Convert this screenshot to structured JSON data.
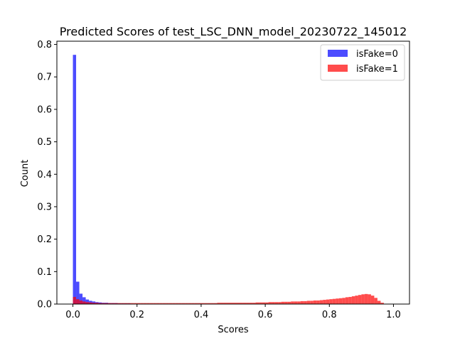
{
  "chart_data": {
    "type": "bar",
    "title": "Predicted Scores of test_LSC_DNN_model_20230722_145012",
    "xlabel": "Scores",
    "ylabel": "Count",
    "xlim": [
      -0.05,
      1.05
    ],
    "ylim": [
      0,
      0.81
    ],
    "xticks": [
      "0.0",
      "0.2",
      "0.4",
      "0.6",
      "0.8",
      "1.0"
    ],
    "yticks": [
      "0.0",
      "0.1",
      "0.2",
      "0.3",
      "0.4",
      "0.5",
      "0.6",
      "0.7",
      "0.8"
    ],
    "grid": false,
    "legend_placement": "top-right",
    "bin_width": 0.01,
    "series": [
      {
        "name": "isFake=0",
        "color": "#0000ff",
        "alpha": 0.7,
        "bins": [
          [
            0.0,
            0.768
          ],
          [
            0.01,
            0.069
          ],
          [
            0.02,
            0.032
          ],
          [
            0.03,
            0.021
          ],
          [
            0.04,
            0.014
          ],
          [
            0.05,
            0.01
          ],
          [
            0.06,
            0.008
          ],
          [
            0.07,
            0.006
          ],
          [
            0.08,
            0.005
          ],
          [
            0.09,
            0.004
          ],
          [
            0.1,
            0.004
          ],
          [
            0.11,
            0.003
          ],
          [
            0.12,
            0.003
          ],
          [
            0.13,
            0.003
          ],
          [
            0.14,
            0.002
          ],
          [
            0.15,
            0.002
          ],
          [
            0.16,
            0.002
          ],
          [
            0.17,
            0.002
          ],
          [
            0.18,
            0.001
          ],
          [
            0.19,
            0.001
          ]
        ]
      },
      {
        "name": "isFake=1",
        "color": "#ff0000",
        "alpha": 0.7,
        "bins": [
          [
            0.0,
            0.022
          ],
          [
            0.01,
            0.015
          ],
          [
            0.02,
            0.011
          ],
          [
            0.03,
            0.008
          ],
          [
            0.04,
            0.006
          ],
          [
            0.05,
            0.005
          ],
          [
            0.06,
            0.004
          ],
          [
            0.07,
            0.004
          ],
          [
            0.08,
            0.003
          ],
          [
            0.09,
            0.003
          ],
          [
            0.1,
            0.003
          ],
          [
            0.11,
            0.003
          ],
          [
            0.12,
            0.003
          ],
          [
            0.13,
            0.003
          ],
          [
            0.14,
            0.003
          ],
          [
            0.15,
            0.003
          ],
          [
            0.16,
            0.003
          ],
          [
            0.17,
            0.003
          ],
          [
            0.18,
            0.003
          ],
          [
            0.19,
            0.003
          ],
          [
            0.2,
            0.003
          ],
          [
            0.21,
            0.003
          ],
          [
            0.22,
            0.003
          ],
          [
            0.23,
            0.003
          ],
          [
            0.24,
            0.003
          ],
          [
            0.25,
            0.003
          ],
          [
            0.26,
            0.003
          ],
          [
            0.27,
            0.003
          ],
          [
            0.28,
            0.003
          ],
          [
            0.29,
            0.003
          ],
          [
            0.3,
            0.003
          ],
          [
            0.31,
            0.003
          ],
          [
            0.32,
            0.003
          ],
          [
            0.33,
            0.003
          ],
          [
            0.34,
            0.003
          ],
          [
            0.35,
            0.003
          ],
          [
            0.36,
            0.003
          ],
          [
            0.37,
            0.003
          ],
          [
            0.38,
            0.003
          ],
          [
            0.39,
            0.003
          ],
          [
            0.4,
            0.003
          ],
          [
            0.41,
            0.003
          ],
          [
            0.42,
            0.003
          ],
          [
            0.43,
            0.003
          ],
          [
            0.44,
            0.003
          ],
          [
            0.45,
            0.004
          ],
          [
            0.46,
            0.004
          ],
          [
            0.47,
            0.004
          ],
          [
            0.48,
            0.004
          ],
          [
            0.49,
            0.004
          ],
          [
            0.5,
            0.004
          ],
          [
            0.51,
            0.004
          ],
          [
            0.52,
            0.004
          ],
          [
            0.53,
            0.004
          ],
          [
            0.54,
            0.004
          ],
          [
            0.55,
            0.004
          ],
          [
            0.56,
            0.004
          ],
          [
            0.57,
            0.005
          ],
          [
            0.58,
            0.005
          ],
          [
            0.59,
            0.005
          ],
          [
            0.6,
            0.005
          ],
          [
            0.61,
            0.006
          ],
          [
            0.62,
            0.006
          ],
          [
            0.63,
            0.006
          ],
          [
            0.64,
            0.006
          ],
          [
            0.65,
            0.007
          ],
          [
            0.66,
            0.007
          ],
          [
            0.67,
            0.007
          ],
          [
            0.68,
            0.008
          ],
          [
            0.69,
            0.008
          ],
          [
            0.7,
            0.008
          ],
          [
            0.71,
            0.009
          ],
          [
            0.72,
            0.009
          ],
          [
            0.73,
            0.01
          ],
          [
            0.74,
            0.01
          ],
          [
            0.75,
            0.011
          ],
          [
            0.76,
            0.011
          ],
          [
            0.77,
            0.012
          ],
          [
            0.78,
            0.013
          ],
          [
            0.79,
            0.014
          ],
          [
            0.8,
            0.015
          ],
          [
            0.81,
            0.016
          ],
          [
            0.82,
            0.017
          ],
          [
            0.83,
            0.018
          ],
          [
            0.84,
            0.019
          ],
          [
            0.85,
            0.021
          ],
          [
            0.86,
            0.022
          ],
          [
            0.87,
            0.024
          ],
          [
            0.88,
            0.026
          ],
          [
            0.89,
            0.028
          ],
          [
            0.9,
            0.03
          ],
          [
            0.91,
            0.031
          ],
          [
            0.92,
            0.03
          ],
          [
            0.93,
            0.026
          ],
          [
            0.94,
            0.019
          ],
          [
            0.95,
            0.01
          ],
          [
            0.96,
            0.004
          ],
          [
            0.97,
            0.001
          ]
        ]
      }
    ]
  }
}
